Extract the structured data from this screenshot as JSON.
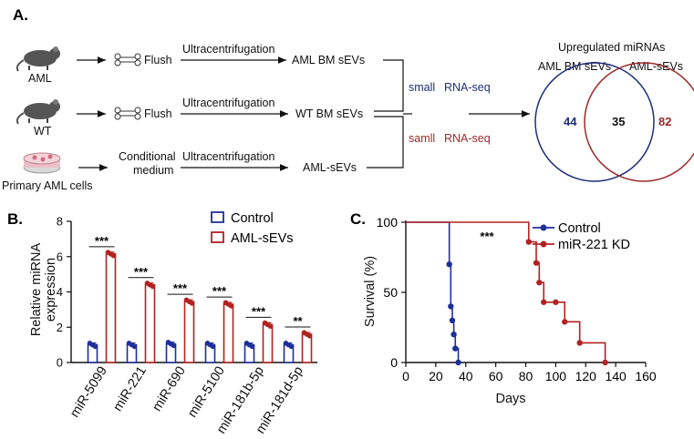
{
  "panels": [
    "A.",
    "B.",
    "C."
  ],
  "workflow": {
    "sources": [
      "AML",
      "WT",
      "Primary AML cells"
    ],
    "steps": [
      {
        "step1": "Flush",
        "step2": "Ultracentrifugation",
        "product": "AML BM sEVs"
      },
      {
        "step1": "Flush",
        "step2": "Ultracentrifugation",
        "product": "WT  BM sEVs"
      },
      {
        "step1_line1": "Conditional",
        "step1_line2": "medium",
        "step2": "Ultracentrifugation",
        "product": "AML-sEVs"
      }
    ],
    "seq_labels": [
      {
        "a": "small",
        "b": "RNA-seq",
        "color": "#1f2f7a"
      },
      {
        "a": "samll",
        "b": "RNA-seq",
        "color": "#9c2a2a"
      }
    ]
  },
  "venn": {
    "title": "Upregulated miRNAs",
    "left_label": "AML BM sEVs",
    "right_label": "AML-sEVs",
    "left_only": "44",
    "overlap": "35",
    "right_only": "82",
    "left_color": "#1f2f7a",
    "right_color": "#9c2a2a"
  },
  "chart_data": [
    {
      "type": "bar",
      "ylabel_line1": "Relative miRNA",
      "ylabel_line2": "expression",
      "ylim": [
        0,
        8
      ],
      "yticks": [
        "0",
        "2",
        "4",
        "6",
        "8"
      ],
      "categories": [
        "miR-5099",
        "miR-221",
        "miR-690",
        "miR-5100",
        "miR-181b-5p",
        "miR-181d-5p"
      ],
      "series": [
        {
          "name": "Control",
          "color": "#1f2f9a",
          "values": [
            1.0,
            1.0,
            1.05,
            1.0,
            1.0,
            1.0
          ]
        },
        {
          "name": "AML-sEVs",
          "color": "#b22222",
          "values": [
            6.15,
            4.4,
            3.45,
            3.3,
            2.15,
            1.6
          ]
        }
      ],
      "significance": [
        "***",
        "***",
        "***",
        "***",
        "***",
        "**"
      ]
    },
    {
      "type": "line",
      "ylabel": "Survival (%)",
      "xlabel": "Days",
      "xlim": [
        0,
        160
      ],
      "ylim": [
        0,
        100
      ],
      "xticks": [
        "0",
        "20",
        "40",
        "60",
        "80",
        "100",
        "120",
        "140",
        "160"
      ],
      "yticks": [
        "0",
        "50",
        "100"
      ],
      "significance": "***",
      "series": [
        {
          "name": "Control",
          "color": "#1f2f9a",
          "x": [
            0,
            29,
            29,
            30,
            31,
            32,
            33,
            35
          ],
          "y": [
            100,
            100,
            70,
            40,
            30,
            20,
            10,
            0
          ]
        },
        {
          "name": "miR-221 KD",
          "color": "#b22222",
          "x": [
            0,
            82,
            82,
            87,
            89,
            92,
            100,
            106,
            116,
            133
          ],
          "y": [
            100,
            100,
            86,
            71,
            57,
            43,
            43,
            29,
            14,
            0
          ]
        }
      ]
    }
  ]
}
